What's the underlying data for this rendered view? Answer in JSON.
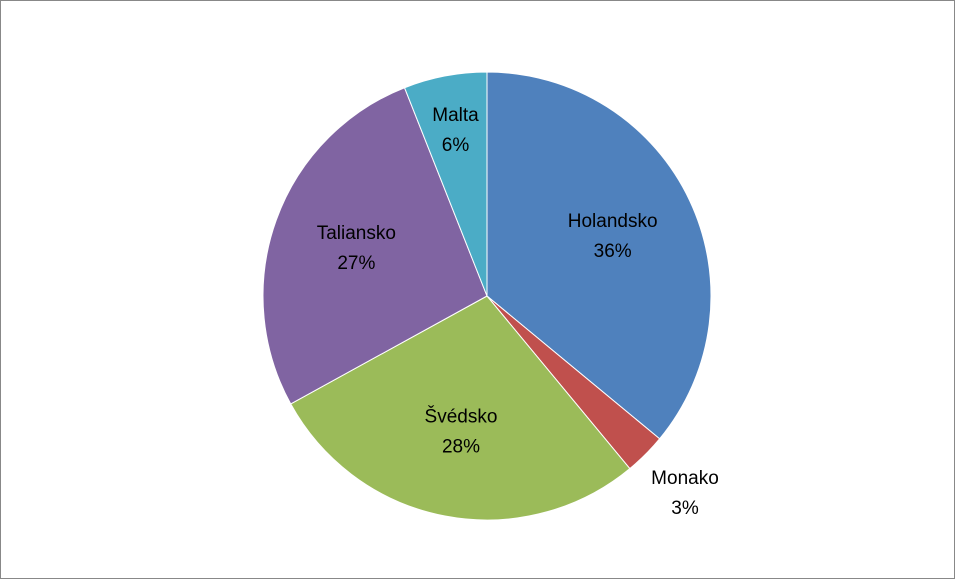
{
  "chart_data": {
    "type": "pie",
    "categories": [
      "Holandsko",
      "Monako",
      "Švédsko",
      "Taliansko",
      "Malta"
    ],
    "values": [
      36,
      3,
      28,
      27,
      6
    ],
    "value_labels": [
      "36%",
      "3%",
      "28%",
      "27%",
      "6%"
    ],
    "colors": [
      "#4f81bd",
      "#c0504d",
      "#9bbb59",
      "#8064a2",
      "#4bacc6"
    ]
  }
}
